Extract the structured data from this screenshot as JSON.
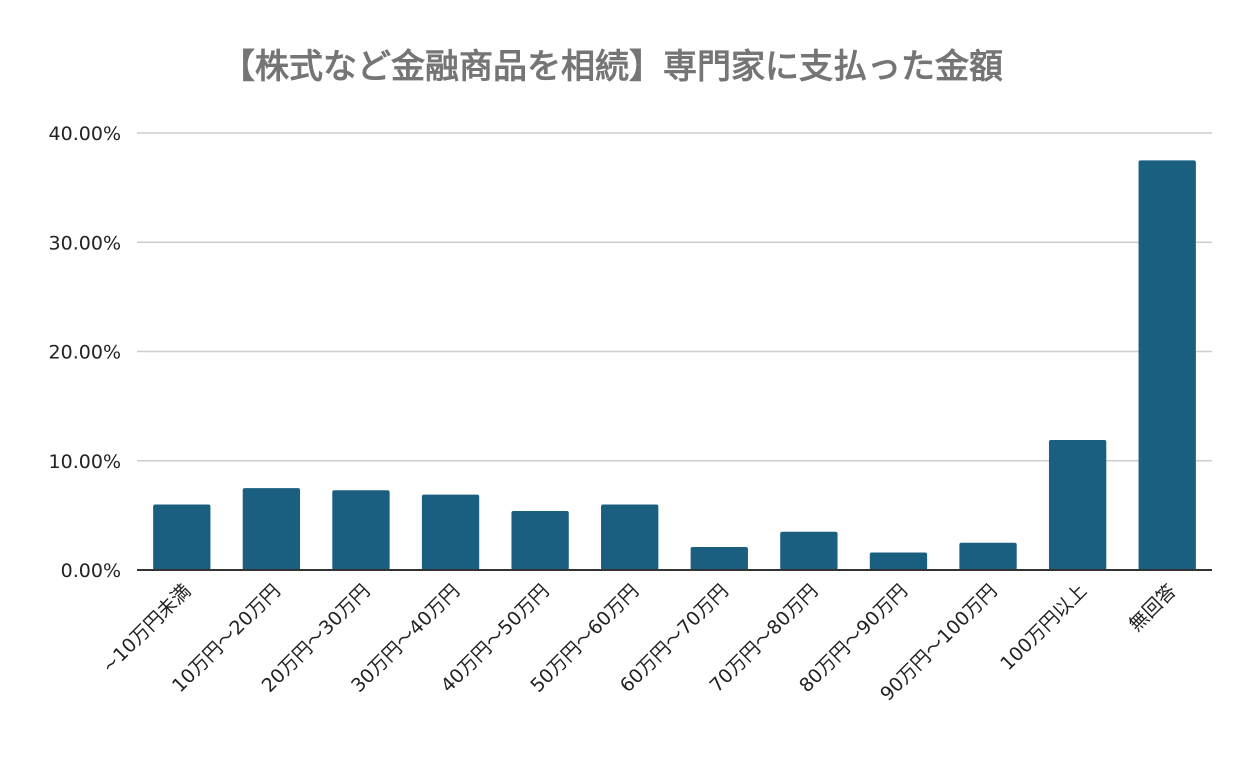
{
  "chart_data": {
    "type": "bar",
    "title": "【株式など金融商品を相続】専門家に支払った金額",
    "xlabel": "",
    "ylabel": "",
    "categories": [
      "~10万円未満",
      "10万円～20万円",
      "20万円～30万円",
      "30万円～40万円",
      "40万円～50万円",
      "50万円～60万円",
      "60万円～70万円",
      "70万円～80万円",
      "80万円～90万円",
      "90万円～100万円",
      "100万円以上",
      "無回答"
    ],
    "values": [
      6.0,
      7.5,
      7.3,
      6.9,
      5.4,
      6.0,
      2.1,
      3.5,
      1.6,
      2.5,
      11.9,
      37.5
    ],
    "ylim": [
      0,
      40
    ],
    "yticks": [
      0,
      10,
      20,
      30,
      40
    ],
    "ytick_labels": [
      "0.00%",
      "10.00%",
      "20.00%",
      "30.00%",
      "40.00%"
    ],
    "grid": true,
    "legend": "none",
    "colors": {
      "bar": "#1a5f7f",
      "grid": "#cccccc",
      "axis": "#333333",
      "title": "#757575"
    }
  }
}
